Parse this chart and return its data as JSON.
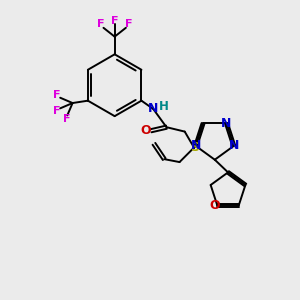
{
  "background_color": "#ebebeb",
  "atom_colors": {
    "C": "#000000",
    "N": "#0000cc",
    "O": "#cc0000",
    "F": "#dd00dd",
    "S": "#aaaa00",
    "H": "#008888"
  },
  "bond_color": "#000000",
  "bond_width": 1.4
}
